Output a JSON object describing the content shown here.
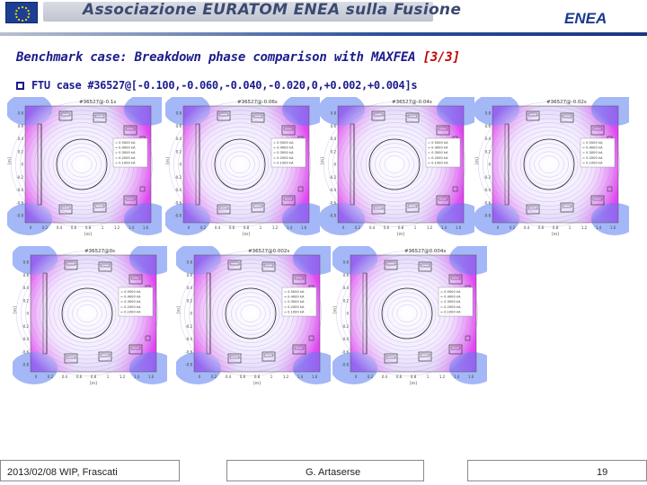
{
  "header": {
    "banner_title": "Associazione EURATOM ENEA sulla Fusione",
    "logo_text": "ENEA"
  },
  "slide": {
    "title_main": "Benchmark case: Breakdown phase comparison with MAXFEA ",
    "title_suffix": "[3/3]",
    "bullet": "FTU case #36527@[-0.100,-0.060,-0.040,-0.020,0,+0.002,+0.004]s"
  },
  "panels": [
    {
      "title": "#36527@-0.1s",
      "legend": [
        "= 0.5000 kA",
        "= 0.4000 kA",
        "= 0.3000 kA",
        "= 0.2000 kA",
        "= 0.1000 kA"
      ]
    },
    {
      "title": "#36527@-0.06s",
      "legend": [
        "= 0.5000 kA",
        "= 0.4000 kA",
        "= 0.3000 kA",
        "= 0.2000 kA",
        "= 0.1000 kA"
      ]
    },
    {
      "title": "#36527@-0.04s",
      "legend": [
        "= 0.5000 kA",
        "= 0.4000 kA",
        "= 0.3000 kA",
        "= 0.2000 kA",
        "= 0.1000 kA"
      ]
    },
    {
      "title": "#36527@-0.02s",
      "legend": [
        "= 0.5000 kA",
        "= 0.4000 kA",
        "= 0.3000 kA",
        "= 0.2000 kA",
        "= 0.1000 kA"
      ]
    },
    {
      "title": "#36527@0s",
      "legend": [
        "= 0.5000 kA",
        "= 0.4000 kA",
        "= 0.3000 kA",
        "= 0.2000 kA",
        "= 0.1000 kA"
      ]
    },
    {
      "title": "#36527@0.002s",
      "legend": [
        "= 0.5000 kA",
        "= 0.4000 kA",
        "= 0.3000 kA",
        "= 0.2000 kA",
        "= 0.1000 kA"
      ]
    },
    {
      "title": "#36527@0.004s",
      "legend": [
        "= 0.5000 kA",
        "= 0.4000 kA",
        "= 0.3000 kA",
        "= 0.2000 kA",
        "= 0.1000 kA"
      ]
    }
  ],
  "axis": {
    "xlabel": "[m]",
    "ylabel": "[m]",
    "yticks": [
      "0.8",
      "0.6",
      "0.4",
      "0.2",
      "0",
      "-0.2",
      "-0.4",
      "-0.6",
      "-0.8"
    ],
    "xticks": [
      "0",
      "0.2",
      "0.4",
      "0.6",
      "0.8",
      "1",
      "1.2",
      "1.4",
      "1.6"
    ]
  },
  "footer": {
    "date_place": "2013/02/08  WIP, Frascati",
    "author": "G. Artaserse",
    "page": "19"
  },
  "colors": {
    "title": "#1b1b8c",
    "accent": "#c00000",
    "field_magenta": "#e040f0",
    "field_blue": "#4a6cf0"
  }
}
